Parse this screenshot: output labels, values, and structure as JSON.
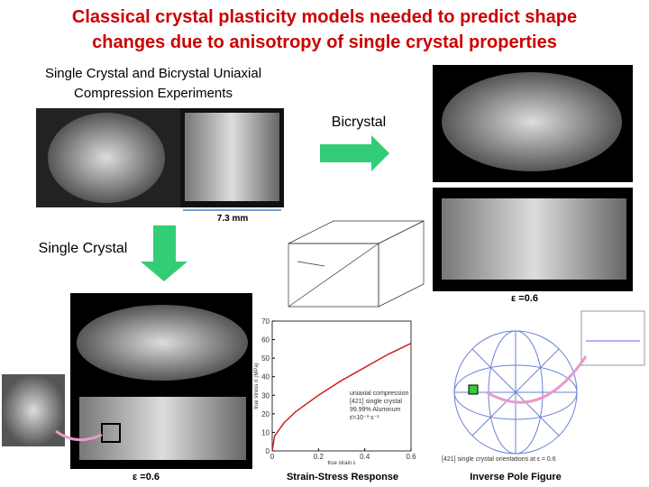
{
  "header": {
    "title_line1": "Classical crystal plasticity models needed to predict shape",
    "title_line2": "changes due to anisotropy of single crystal properties"
  },
  "experiments": {
    "line1": "Single Crystal and Bicrystal Uniaxial",
    "line2": "Compression Experiments",
    "scale": "7.3 mm"
  },
  "labels": {
    "bicrystal": "Bicrystal",
    "single_crystal": "Single Crystal",
    "strain_right": "ε =0.6",
    "strain_left": "ε =0.6"
  },
  "plot": {
    "caption": "Strain-Stress Response",
    "ylabel": "true stress σ (MPa)",
    "xlabel": "true strain ε",
    "legend": [
      "uniaxial compression",
      "[421] single crystal",
      "99.99% Aluminum",
      "ε̇=10⁻³ s⁻¹"
    ],
    "xlim": [
      0,
      0.6
    ],
    "ylim": [
      0,
      70
    ],
    "xticks": [
      0,
      0.2,
      0.4,
      0.6
    ],
    "yticks": [
      0,
      10,
      20,
      30,
      40,
      50,
      60,
      70
    ],
    "x": [
      0,
      0.01,
      0.05,
      0.1,
      0.2,
      0.3,
      0.4,
      0.5,
      0.6
    ],
    "y": [
      0,
      8,
      15,
      21,
      30,
      38,
      45,
      52,
      58
    ],
    "color": "#cc2222"
  },
  "pole": {
    "caption": "Inverse Pole Figure",
    "note": "[421] single crystal orientations at ε = 0.6"
  }
}
